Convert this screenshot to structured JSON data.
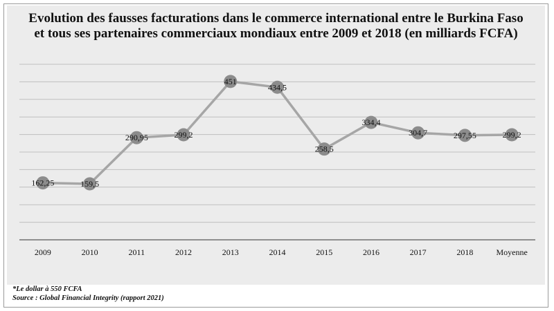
{
  "chart_data": {
    "type": "line",
    "title_line1": "Evolution des fausses facturations dans le commerce international entre le Burkina Faso",
    "title_line2": "et tous ses partenaires commerciaux mondiaux entre 2009 et 2018 (en milliards FCFA)",
    "categories": [
      "2009",
      "2010",
      "2011",
      "2012",
      "2013",
      "2014",
      "2015",
      "2016",
      "2017",
      "2018",
      "Moyenne"
    ],
    "values": [
      162.25,
      159.5,
      290.95,
      299.2,
      451,
      434.5,
      258.5,
      334.4,
      304.7,
      297.55,
      299.2
    ],
    "data_labels": [
      "162,25",
      "159,5",
      "290,95",
      "299,2",
      "451",
      "434,5",
      "258,5",
      "334,4",
      "304,7",
      "297,55",
      "299,2"
    ],
    "ylim": [
      0,
      500
    ],
    "grid": true,
    "legend": "none",
    "colors": {
      "line": "#a6a6a6",
      "marker": "#8c8c8c",
      "grid": "#bfbfbf",
      "axis": "#6e6e6e",
      "background": "#ececec"
    }
  },
  "footnotes": {
    "note": "*Le dollar à 550 FCFA",
    "source": "Source : Global Financial Integrity (rapport 2021)"
  }
}
